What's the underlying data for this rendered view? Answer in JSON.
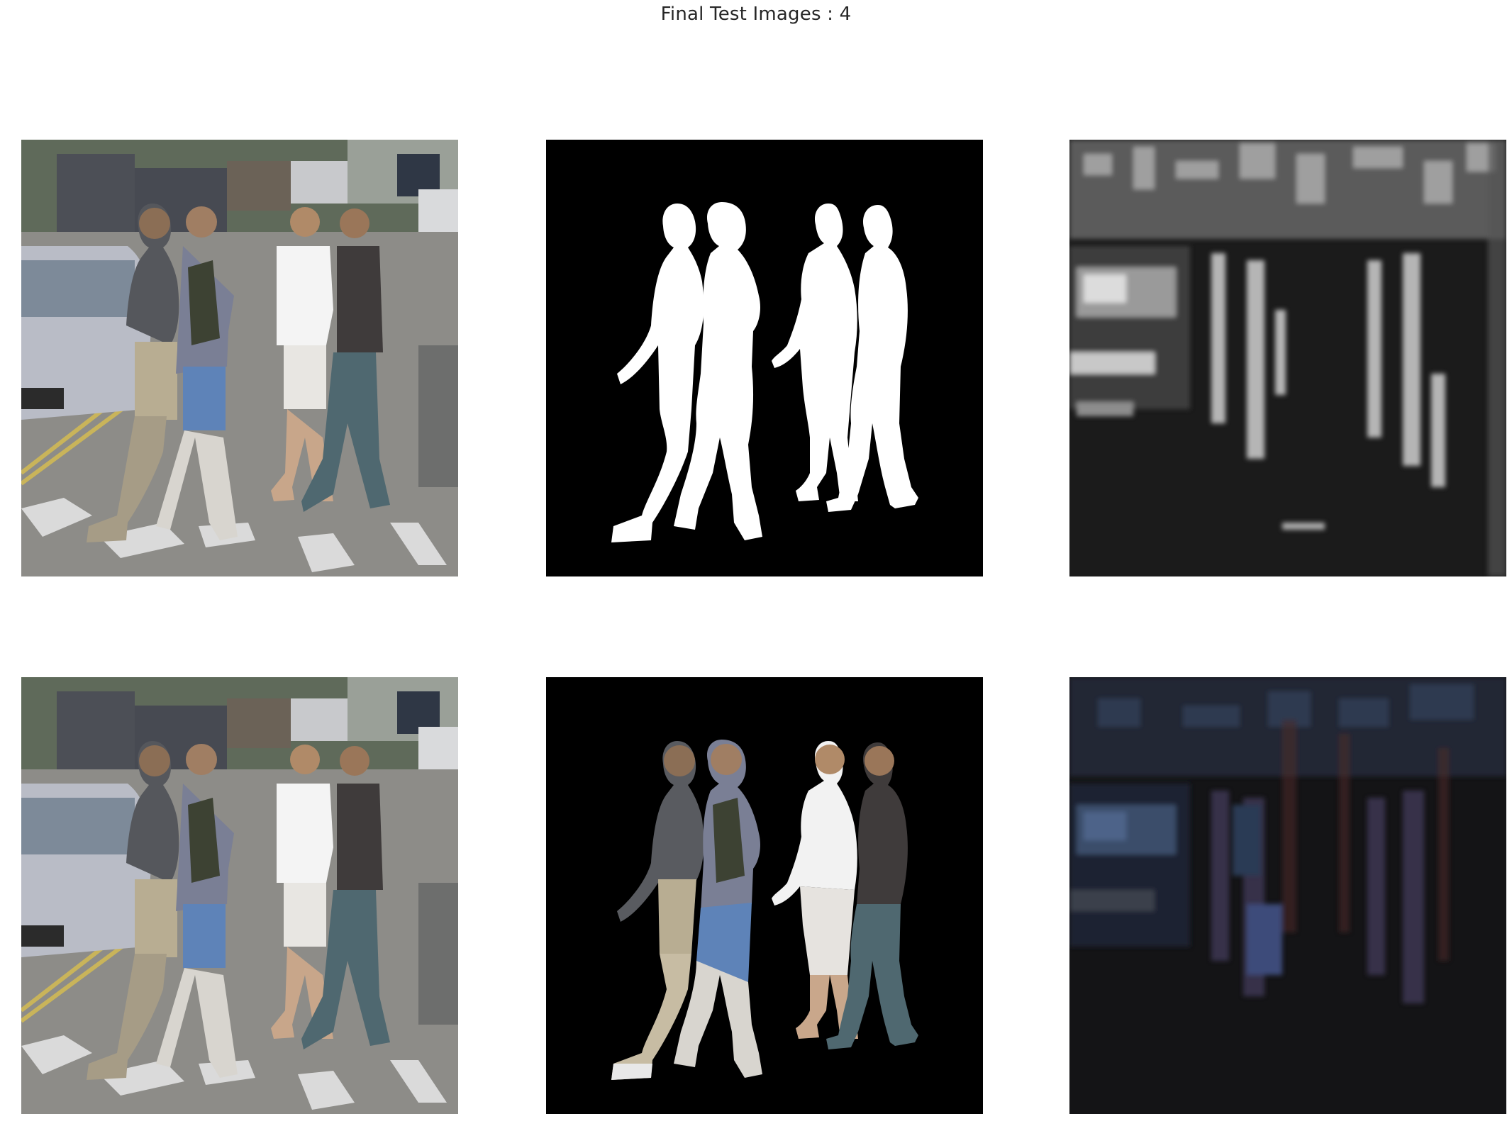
{
  "figure": {
    "title": "Final Test Images : 4"
  },
  "panels": [
    {
      "row": 0,
      "col": 0,
      "kind": "input-photo"
    },
    {
      "row": 0,
      "col": 1,
      "kind": "binary-mask"
    },
    {
      "row": 0,
      "col": 2,
      "kind": "grayscale-feature-map"
    },
    {
      "row": 1,
      "col": 0,
      "kind": "input-photo"
    },
    {
      "row": 1,
      "col": 1,
      "kind": "masked-photo"
    },
    {
      "row": 1,
      "col": 2,
      "kind": "dark-residual-map"
    }
  ],
  "colors": {
    "background": "#ffffff",
    "title_text": "#262626",
    "mask_background": "#000000",
    "mask_foreground": "#ffffff",
    "road": "#8e8e8a",
    "car_silver": "#b9bcc6"
  }
}
